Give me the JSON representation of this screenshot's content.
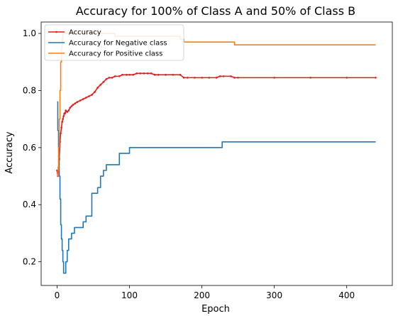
{
  "chart_data": {
    "type": "line",
    "title": "Accuracy for 100% of Class A and 50% of Class B",
    "xlabel": "Epoch",
    "ylabel": "Accuracy",
    "xlim": [
      -22,
      463
    ],
    "ylim": [
      0.117,
      1.04
    ],
    "xticks": [
      0,
      100,
      200,
      300,
      400
    ],
    "xtick_labels": [
      "0",
      "100",
      "200",
      "300",
      "400"
    ],
    "yticks": [
      0.2,
      0.4,
      0.6,
      0.8,
      1.0
    ],
    "ytick_labels": [
      "0.2",
      "0.4",
      "0.6",
      "0.8",
      "1.0"
    ],
    "grid": false,
    "legend": "top-left",
    "series": [
      {
        "name": "Accuracy",
        "color": "#e31a1c",
        "marker": "dot",
        "x": [
          0,
          1,
          2,
          3,
          4,
          5,
          6,
          7,
          8,
          9,
          10,
          11,
          12,
          14,
          16,
          18,
          20,
          22,
          25,
          28,
          32,
          36,
          40,
          44,
          48,
          52,
          56,
          60,
          64,
          68,
          72,
          76,
          80,
          86,
          90,
          96,
          100,
          105,
          110,
          115,
          120,
          125,
          130,
          135,
          140,
          150,
          160,
          170,
          175,
          180,
          190,
          200,
          210,
          220,
          225,
          230,
          240,
          245,
          250,
          300,
          350,
          400,
          440
        ],
        "values": [
          0.52,
          0.5,
          0.53,
          0.56,
          0.62,
          0.65,
          0.67,
          0.69,
          0.7,
          0.71,
          0.72,
          0.72,
          0.73,
          0.725,
          0.73,
          0.74,
          0.745,
          0.75,
          0.755,
          0.76,
          0.765,
          0.77,
          0.775,
          0.78,
          0.785,
          0.795,
          0.81,
          0.82,
          0.83,
          0.84,
          0.845,
          0.845,
          0.85,
          0.85,
          0.855,
          0.855,
          0.855,
          0.855,
          0.86,
          0.86,
          0.86,
          0.86,
          0.86,
          0.855,
          0.855,
          0.855,
          0.855,
          0.855,
          0.845,
          0.845,
          0.845,
          0.845,
          0.845,
          0.845,
          0.85,
          0.85,
          0.85,
          0.845,
          0.845,
          0.845,
          0.845,
          0.845,
          0.845
        ]
      },
      {
        "name": "Accuracy for Negative class",
        "color": "#1f77b4",
        "step": true,
        "x": [
          0,
          1,
          2,
          3,
          4,
          5,
          6,
          7,
          8,
          9,
          10,
          12,
          14,
          16,
          18,
          20,
          22,
          24,
          26,
          30,
          36,
          40,
          44,
          48,
          50,
          56,
          60,
          64,
          68,
          72,
          86,
          100,
          120,
          140,
          160,
          180,
          200,
          210,
          226,
          228,
          300,
          350,
          400,
          440
        ],
        "values": [
          0.76,
          0.66,
          0.6,
          0.5,
          0.42,
          0.33,
          0.28,
          0.24,
          0.2,
          0.16,
          0.16,
          0.2,
          0.24,
          0.28,
          0.28,
          0.3,
          0.3,
          0.32,
          0.32,
          0.32,
          0.34,
          0.36,
          0.36,
          0.44,
          0.44,
          0.46,
          0.5,
          0.52,
          0.54,
          0.54,
          0.58,
          0.6,
          0.6,
          0.6,
          0.6,
          0.6,
          0.6,
          0.6,
          0.6,
          0.62,
          0.62,
          0.62,
          0.62,
          0.62
        ]
      },
      {
        "name": "Accuracy for Positive class",
        "color": "#ff7f0e",
        "step": true,
        "x": [
          0,
          1,
          2,
          3,
          4,
          5,
          6,
          7,
          8,
          9,
          10,
          12,
          16,
          20,
          30,
          40,
          60,
          80,
          86,
          100,
          150,
          170,
          175,
          200,
          240,
          245,
          300,
          350,
          400,
          440
        ],
        "values": [
          0.5,
          0.52,
          0.6,
          0.7,
          0.8,
          0.9,
          0.95,
          0.98,
          1.0,
          1.0,
          1.0,
          1.0,
          1.0,
          1.0,
          1.0,
          1.0,
          1.0,
          0.99,
          0.99,
          0.99,
          0.99,
          0.98,
          0.97,
          0.97,
          0.97,
          0.96,
          0.96,
          0.96,
          0.96,
          0.96
        ]
      }
    ]
  }
}
